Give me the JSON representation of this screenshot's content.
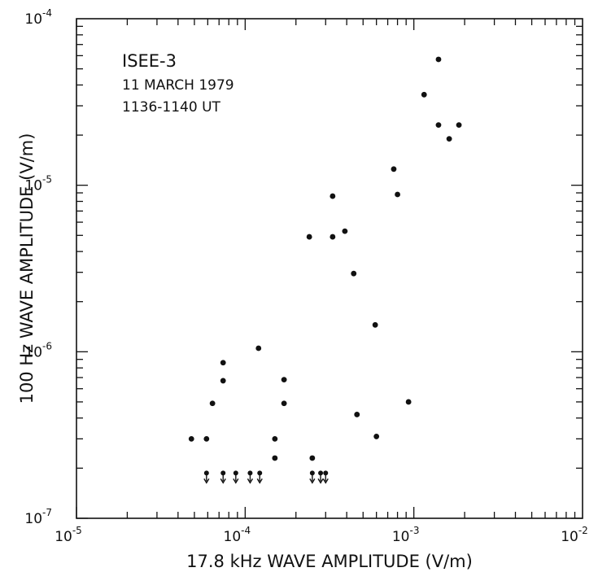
{
  "chart_data": {
    "type": "scatter",
    "xlabel": "17.8 kHz WAVE AMPLITUDE (V/m)",
    "ylabel": "100 Hz WAVE AMPLITUDE (V/m)",
    "x_scale": "log",
    "y_scale": "log",
    "xlim": [
      1e-05,
      0.01
    ],
    "ylim": [
      1e-07,
      0.0001
    ],
    "x_ticks": [
      {
        "value": 1e-05,
        "base": "10",
        "exp": "-5"
      },
      {
        "value": 0.0001,
        "base": "10",
        "exp": "-4"
      },
      {
        "value": 0.001,
        "base": "10",
        "exp": "-3"
      },
      {
        "value": 0.01,
        "base": "10",
        "exp": "-2"
      }
    ],
    "y_ticks": [
      {
        "value": 1e-07,
        "base": "10",
        "exp": "-7"
      },
      {
        "value": 1e-06,
        "base": "10",
        "exp": "-6"
      },
      {
        "value": 1e-05,
        "base": "10",
        "exp": "-5"
      },
      {
        "value": 0.0001,
        "base": "10",
        "exp": "-4"
      }
    ],
    "grid": false,
    "annotations": [
      "ISEE-3",
      "11 MARCH 1979",
      "1136-1140 UT"
    ],
    "points": [
      {
        "x": 4.8e-05,
        "y": 3e-07
      },
      {
        "x": 5.9e-05,
        "y": 3e-07
      },
      {
        "x": 6.4e-05,
        "y": 4.9e-07
      },
      {
        "x": 7.4e-05,
        "y": 6.7e-07
      },
      {
        "x": 7.4e-05,
        "y": 8.6e-07
      },
      {
        "x": 0.00012,
        "y": 1.05e-06
      },
      {
        "x": 0.00015,
        "y": 2.3e-07
      },
      {
        "x": 0.00015,
        "y": 3e-07
      },
      {
        "x": 0.00017,
        "y": 4.9e-07
      },
      {
        "x": 0.00017,
        "y": 6.8e-07
      },
      {
        "x": 0.00024,
        "y": 4.9e-06
      },
      {
        "x": 0.00025,
        "y": 2.3e-07
      },
      {
        "x": 0.00033,
        "y": 4.9e-06
      },
      {
        "x": 0.00033,
        "y": 8.6e-06
      },
      {
        "x": 0.00039,
        "y": 5.3e-06
      },
      {
        "x": 0.00044,
        "y": 2.95e-06
      },
      {
        "x": 0.00046,
        "y": 4.2e-07
      },
      {
        "x": 0.00059,
        "y": 1.45e-06
      },
      {
        "x": 0.0006,
        "y": 3.1e-07
      },
      {
        "x": 0.00076,
        "y": 1.25e-05
      },
      {
        "x": 0.0008,
        "y": 8.8e-06
      },
      {
        "x": 0.00093,
        "y": 5e-07
      },
      {
        "x": 0.00115,
        "y": 3.5e-05
      },
      {
        "x": 0.0014,
        "y": 5.7e-05
      },
      {
        "x": 0.0014,
        "y": 2.3e-05
      },
      {
        "x": 0.00162,
        "y": 1.9e-05
      },
      {
        "x": 0.00185,
        "y": 2.3e-05
      }
    ],
    "upper_limits": [
      {
        "x": 5.9e-05,
        "y": 1.87e-07
      },
      {
        "x": 7.4e-05,
        "y": 1.87e-07
      },
      {
        "x": 8.8e-05,
        "y": 1.87e-07
      },
      {
        "x": 0.000107,
        "y": 1.87e-07
      },
      {
        "x": 0.000122,
        "y": 1.87e-07
      },
      {
        "x": 0.00025,
        "y": 1.87e-07
      },
      {
        "x": 0.00028,
        "y": 1.87e-07
      },
      {
        "x": 0.0003,
        "y": 1.87e-07
      }
    ]
  }
}
